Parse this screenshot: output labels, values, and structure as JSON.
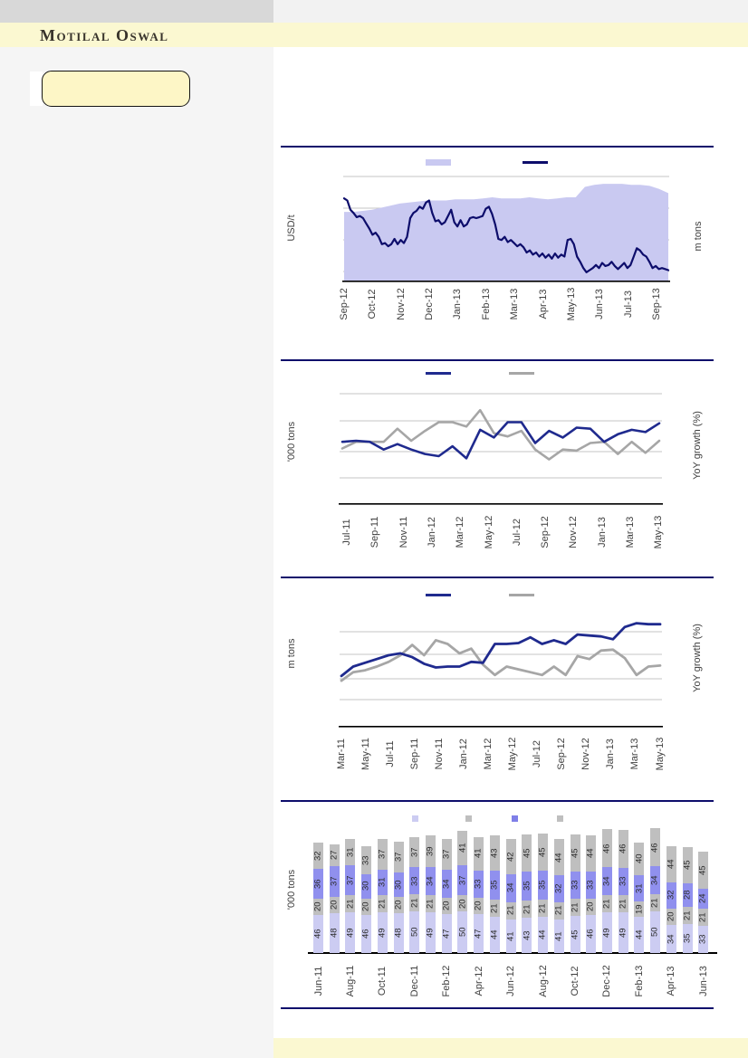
{
  "header": {
    "brand": "Motilal Oswal"
  },
  "theme": {
    "divider_navy": "#0d0d6b",
    "line_navy_dark": "#0d0d6b",
    "line_navy": "#1f2a8e",
    "line_gray": "#a6a6a6",
    "area_lavender": "#c9c9f1",
    "bar_lavender": "#ccccf2",
    "bar_gray": "#bfbfbf",
    "bar_purple": "#9090ee",
    "legend_purple": "#7f7fe8",
    "band_yellow": "#fbf8d1",
    "callout_yellow": "#fdf6c6",
    "gridline_gray": "#c6c6c6"
  },
  "chart_data": [
    {
      "type": "area",
      "title": "",
      "ylabel_left": "USD/t",
      "ylabel_right": "m tons",
      "x_range": [
        "Sep-12",
        "Sep-13"
      ],
      "x_tick_labels": [
        "Sep-12",
        "Oct-12",
        "Nov-12",
        "Dec-12",
        "Jan-13",
        "Feb-13",
        "Mar-13",
        "Apr-13",
        "May-13",
        "Jun-13",
        "Jul-13",
        "Sep-13"
      ],
      "axis_numbers_visible": false,
      "units_note": "no numeric ticks printed; series values are relative heights 0-100 of plot area",
      "legend_swatches": [
        {
          "kind": "area",
          "color": "#c9c9f1",
          "label": ""
        },
        {
          "kind": "line",
          "color": "#0d0d6b",
          "label": ""
        }
      ],
      "series": [
        {
          "name": "",
          "type": "area",
          "color": "#c9c9f1",
          "values": [
            66,
            66,
            67,
            68,
            70,
            72,
            74,
            75,
            76,
            77,
            77,
            77,
            78,
            78,
            78,
            79,
            80,
            79,
            79,
            79,
            80,
            79,
            78,
            79,
            80,
            80,
            90,
            92,
            93,
            93,
            93,
            92,
            92,
            91,
            88,
            84
          ]
        },
        {
          "name": "",
          "type": "line",
          "color": "#0d0d6b",
          "values": [
            79,
            77,
            68,
            65,
            61,
            62,
            60,
            55,
            50,
            44,
            46,
            42,
            35,
            36,
            33,
            35,
            40,
            35,
            39,
            36,
            42,
            60,
            65,
            67,
            71,
            69,
            75,
            77,
            65,
            57,
            58,
            54,
            56,
            62,
            68,
            56,
            52,
            58,
            52,
            54,
            60,
            61,
            60,
            61,
            62,
            69,
            71,
            64,
            54,
            40,
            39,
            42,
            37,
            39,
            36,
            33,
            35,
            32,
            27,
            29,
            25,
            27,
            23,
            26,
            22,
            25,
            21,
            26,
            22,
            25,
            23,
            39,
            40,
            35,
            23,
            18,
            12,
            8,
            10,
            12,
            15,
            12,
            17,
            14,
            15,
            18,
            14,
            11,
            14,
            17,
            12,
            15,
            23,
            31,
            29,
            25,
            23,
            18,
            12,
            14,
            11,
            12,
            11,
            10
          ]
        }
      ]
    },
    {
      "type": "line",
      "title": "",
      "ylabel_left": "'000 tons",
      "ylabel_right": "YoY growth (%)",
      "x": [
        "Jul-11",
        "Aug-11",
        "Sep-11",
        "Oct-11",
        "Nov-11",
        "Dec-11",
        "Jan-12",
        "Feb-12",
        "Mar-12",
        "Apr-12",
        "May-12",
        "Jun-12",
        "Jul-12",
        "Aug-12",
        "Sep-12",
        "Oct-12",
        "Nov-12",
        "Dec-12",
        "Jan-13",
        "Feb-13",
        "Mar-13",
        "Apr-13",
        "May-13",
        "Jun-13"
      ],
      "x_tick_labels": [
        "Jul-11",
        "Sep-11",
        "Nov-11",
        "Jan-12",
        "Mar-12",
        "May-12",
        "Jul-12",
        "Sep-12",
        "Nov-12",
        "Jan-13",
        "Mar-13",
        "May-13"
      ],
      "axis_numbers_visible": false,
      "units_note": "no numeric ticks printed; series values are relative heights 0-100 of plot area",
      "legend_swatches": [
        {
          "kind": "line",
          "color": "#1f2a8e",
          "label": ""
        },
        {
          "kind": "line",
          "color": "#a6a6a6",
          "label": ""
        }
      ],
      "series": [
        {
          "name": "",
          "type": "line",
          "color": "#1f2a8e",
          "values": [
            56,
            57,
            56,
            49,
            54,
            49,
            45,
            43,
            52,
            41,
            67,
            60,
            74,
            74,
            55,
            66,
            60,
            69,
            68,
            56,
            63,
            67,
            65,
            73
          ]
        },
        {
          "name": "",
          "type": "line",
          "color": "#a6a6a6",
          "values": [
            50,
            56,
            56,
            56,
            68,
            57,
            66,
            74,
            74,
            70,
            85,
            64,
            61,
            66,
            49,
            40,
            49,
            48,
            55,
            56,
            45,
            56,
            46,
            57
          ]
        }
      ]
    },
    {
      "type": "line",
      "title": "",
      "ylabel_left": "m tons",
      "ylabel_right": "YoY growth (%)",
      "x": [
        "Mar-11",
        "Apr-11",
        "May-11",
        "Jun-11",
        "Jul-11",
        "Aug-11",
        "Sep-11",
        "Oct-11",
        "Nov-11",
        "Dec-11",
        "Jan-12",
        "Feb-12",
        "Mar-12",
        "Apr-12",
        "May-12",
        "Jun-12",
        "Jul-12",
        "Aug-12",
        "Sep-12",
        "Oct-12",
        "Nov-12",
        "Dec-12",
        "Jan-13",
        "Feb-13",
        "Mar-13",
        "Apr-13",
        "May-13",
        "Jun-13"
      ],
      "x_tick_labels": [
        "Mar-11",
        "May-11",
        "Jul-11",
        "Sep-11",
        "Nov-11",
        "Jan-12",
        "Mar-12",
        "May-12",
        "Jul-12",
        "Sep-12",
        "Nov-12",
        "Jan-13",
        "Mar-13",
        "May-13"
      ],
      "axis_numbers_visible": false,
      "units_note": "no numeric ticks printed; series values are relative heights 0-100 of plot area",
      "legend_swatches": [
        {
          "kind": "line",
          "color": "#1f2a8e",
          "label": ""
        },
        {
          "kind": "line",
          "color": "#a6a6a6",
          "label": ""
        }
      ],
      "series": [
        {
          "name": "",
          "type": "line",
          "color": "#1f2a8e",
          "values": [
            53,
            63,
            67,
            71,
            75,
            77,
            73,
            66,
            62,
            63,
            63,
            68,
            67,
            87,
            87,
            88,
            94,
            87,
            91,
            87,
            97,
            96,
            95,
            92,
            105,
            109,
            108,
            108
          ]
        },
        {
          "name": "",
          "type": "line",
          "color": "#a6a6a6",
          "values": [
            48,
            57,
            59,
            63,
            68,
            75,
            86,
            75,
            91,
            87,
            77,
            82,
            65,
            54,
            63,
            60,
            57,
            54,
            63,
            54,
            74,
            71,
            80,
            81,
            72,
            54,
            63,
            64
          ]
        }
      ]
    },
    {
      "type": "stacked-bar",
      "title": "",
      "ylabel_left": "'000 tons",
      "x": [
        "Jun-11",
        "Jul-11",
        "Aug-11",
        "Sep-11",
        "Oct-11",
        "Nov-11",
        "Dec-11",
        "Jan-12",
        "Feb-12",
        "Mar-12",
        "Apr-12",
        "May-12",
        "Jun-12",
        "Jul-12",
        "Aug-12",
        "Sep-12",
        "Oct-12",
        "Nov-12",
        "Dec-12",
        "Jan-13",
        "Feb-13",
        "Mar-13",
        "Apr-13",
        "May-13",
        "Jun-13"
      ],
      "x_tick_labels": [
        "Jun-11",
        "Aug-11",
        "Oct-11",
        "Dec-11",
        "Feb-12",
        "Apr-12",
        "Jun-12",
        "Aug-12",
        "Oct-12",
        "Dec-12",
        "Feb-13",
        "Apr-13",
        "Jun-13"
      ],
      "bar_value_labels_visible": true,
      "legend_swatches": [
        {
          "kind": "square",
          "color": "#ccccf2",
          "label": ""
        },
        {
          "kind": "square",
          "color": "#bfbfbf",
          "label": ""
        },
        {
          "kind": "square",
          "color": "#7f7fe8",
          "label": ""
        },
        {
          "kind": "square",
          "color": "#bfbfbf",
          "label": ""
        }
      ],
      "series": [
        {
          "name": "",
          "color": "#ccccf2",
          "values": [
            46,
            48,
            49,
            46,
            49,
            48,
            50,
            49,
            47,
            50,
            47,
            44,
            41,
            43,
            44,
            41,
            45,
            46,
            49,
            49,
            44,
            50,
            34,
            35,
            33
          ]
        },
        {
          "name": "",
          "color": "#bfbfbf",
          "values": [
            20,
            20,
            21,
            20,
            21,
            20,
            21,
            21,
            20,
            20,
            20,
            21,
            21,
            21,
            21,
            21,
            21,
            20,
            21,
            21,
            19,
            21,
            20,
            21,
            21
          ]
        },
        {
          "name": "",
          "color": "#9090ee",
          "values": [
            36,
            37,
            37,
            30,
            31,
            30,
            33,
            34,
            34,
            37,
            33,
            35,
            34,
            35,
            35,
            32,
            33,
            33,
            34,
            33,
            31,
            34,
            32,
            28,
            24
          ]
        },
        {
          "name": "",
          "color": "#bfbfbf",
          "values": [
            32,
            27,
            31,
            33,
            37,
            37,
            37,
            39,
            37,
            41,
            41,
            43,
            42,
            45,
            45,
            44,
            45,
            44,
            46,
            46,
            40,
            46,
            44,
            45,
            45
          ]
        }
      ]
    }
  ]
}
